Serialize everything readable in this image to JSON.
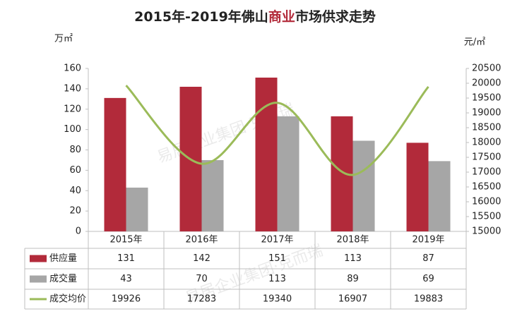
{
  "chart_data": {
    "type": "bar",
    "title": [
      "2015年-2019年佛山",
      "商业",
      "市场供求走势"
    ],
    "y_label": "万㎡",
    "y2_label": "元/㎡",
    "watermark": "易居企业集团·克而瑞",
    "categories": [
      "2015年",
      "2016年",
      "2017年",
      "2018年",
      "2019年"
    ],
    "series": [
      {
        "name": "供应量",
        "color": "#b22a3a",
        "values": [
          131,
          142,
          151,
          113,
          87
        ]
      },
      {
        "name": "成交量",
        "color": "#a6a6a6",
        "values": [
          43,
          70,
          113,
          89,
          69
        ]
      },
      {
        "name": "成交均价",
        "color": "#9bbb59",
        "axis": "y2",
        "type": "line",
        "values": [
          19926,
          17283,
          19340,
          16907,
          19883
        ]
      }
    ],
    "ylim": [
      0,
      160
    ],
    "yticks": [
      0,
      20,
      40,
      60,
      80,
      100,
      120,
      140,
      160
    ],
    "y2lim": [
      15000,
      20500
    ],
    "y2ticks": [
      15000,
      15500,
      16000,
      16500,
      17000,
      17500,
      18000,
      18500,
      19000,
      19500,
      20000,
      20500
    ]
  }
}
